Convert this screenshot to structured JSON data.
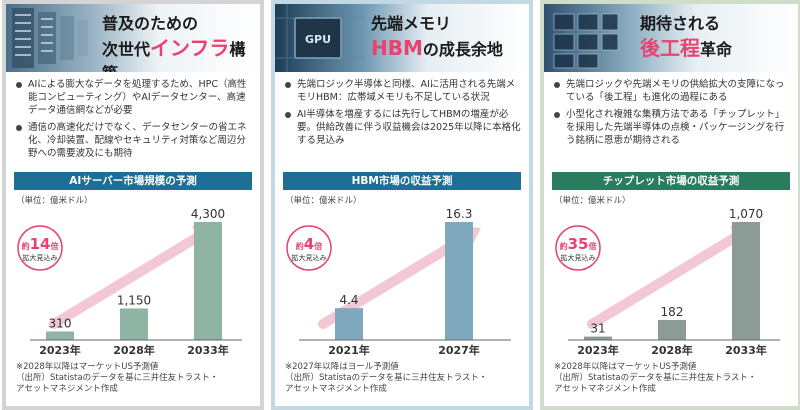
{
  "panels": [
    {
      "title": {
        "pre": "普及のための",
        "line2_pre": "次世代",
        "highlight": "インフラ",
        "line2_post": "構築"
      },
      "bullets": [
        "AIによる膨大なデータを処理するため、HPC（高性能コンピューティング）やAIデータセンター、高速データ通信網などが必要",
        "通信の高速化だけでなく、データセンターの省エネ化、冷却装置、配線やセキュリティ対策など周辺分野への需要波及にも期待"
      ],
      "chart_title": "AIサーバー市場規模の予測",
      "unit": "（単位：億米ドル）",
      "badge": {
        "pre": "約",
        "num": "14",
        "unit": "倍",
        "sub": "拡大見込み"
      },
      "notes": [
        "※2028年以降はマーケットUS予測値",
        "（出所）Statistaのデータを基に三井住友トラスト・",
        "アセットマネジメント作成"
      ]
    },
    {
      "title": {
        "pre": "先端メモリ",
        "line2_pre": "",
        "highlight": "HBM",
        "line2_post": "の成長余地"
      },
      "bullets": [
        "先端ロジック半導体と同様、AIに活用される先端メモリHBM：広帯域メモリも不足している状況",
        "AI半導体を増産するには先行してHBMの増産が必要。供給改善に伴う収益機会は2025年以降に本格化する見込み"
      ],
      "chart_title": "HBM市場の収益予測",
      "unit": "（単位：億米ドル）",
      "badge": {
        "pre": "約",
        "num": "4",
        "unit": "倍",
        "sub": "拡大見込み"
      },
      "notes": [
        "※2027年以降はヨール予測値",
        "（出所）Statistaのデータを基に三井住友トラスト・",
        "アセットマネジメント作成"
      ]
    },
    {
      "title": {
        "pre": "期待される",
        "line2_pre": "",
        "highlight": "後工程",
        "line2_post": "革命"
      },
      "bullets": [
        "先端ロジックや先端メモリの供給拡大の支障になっている「後工程」も進化の過程にある",
        "小型化され複雑な集積方法である「チップレット」を採用した先端半導体の点検・パッケージングを行う銘柄に恩恵が期待される"
      ],
      "chart_title": "チップレット市場の収益予測",
      "unit": "（単位：億米ドル）",
      "badge": {
        "pre": "約",
        "num": "35",
        "unit": "倍",
        "sub": "拡大見込み"
      },
      "notes": [
        "※2028年以降はマーケットUS予測値",
        "（出所）Statistaのデータを基に三井住友トラスト・",
        "アセットマネジメント作成"
      ]
    }
  ],
  "chart_data": [
    {
      "type": "bar",
      "title": "AIサーバー市場規模の予測",
      "ylabel": "（単位：億米ドル）",
      "categories": [
        "2023年",
        "2028年",
        "2033年"
      ],
      "values": [
        310,
        1150,
        4300
      ],
      "value_labels": [
        "310",
        "1,150",
        "4,300"
      ],
      "ylim": [
        0,
        4300
      ],
      "color": "#8fb4a4"
    },
    {
      "type": "bar",
      "title": "HBM市場の収益予測",
      "ylabel": "（単位：億米ドル）",
      "categories": [
        "2021年",
        "2027年"
      ],
      "values": [
        4.4,
        16.3
      ],
      "value_labels": [
        "4.4",
        "16.3"
      ],
      "ylim": [
        0,
        16.3
      ],
      "color": "#7ea8bd"
    },
    {
      "type": "bar",
      "title": "チップレット市場の収益予測",
      "ylabel": "（単位：億米ドル）",
      "categories": [
        "2023年",
        "2028年",
        "2033年"
      ],
      "values": [
        31,
        182,
        1070
      ],
      "value_labels": [
        "31",
        "182",
        "1,070"
      ],
      "ylim": [
        0,
        1070
      ],
      "color": "#8c9b96"
    }
  ],
  "colors": {
    "accent": "#e8426e",
    "arrow": "#f3c8d6",
    "badge_border": "#e8426e"
  }
}
